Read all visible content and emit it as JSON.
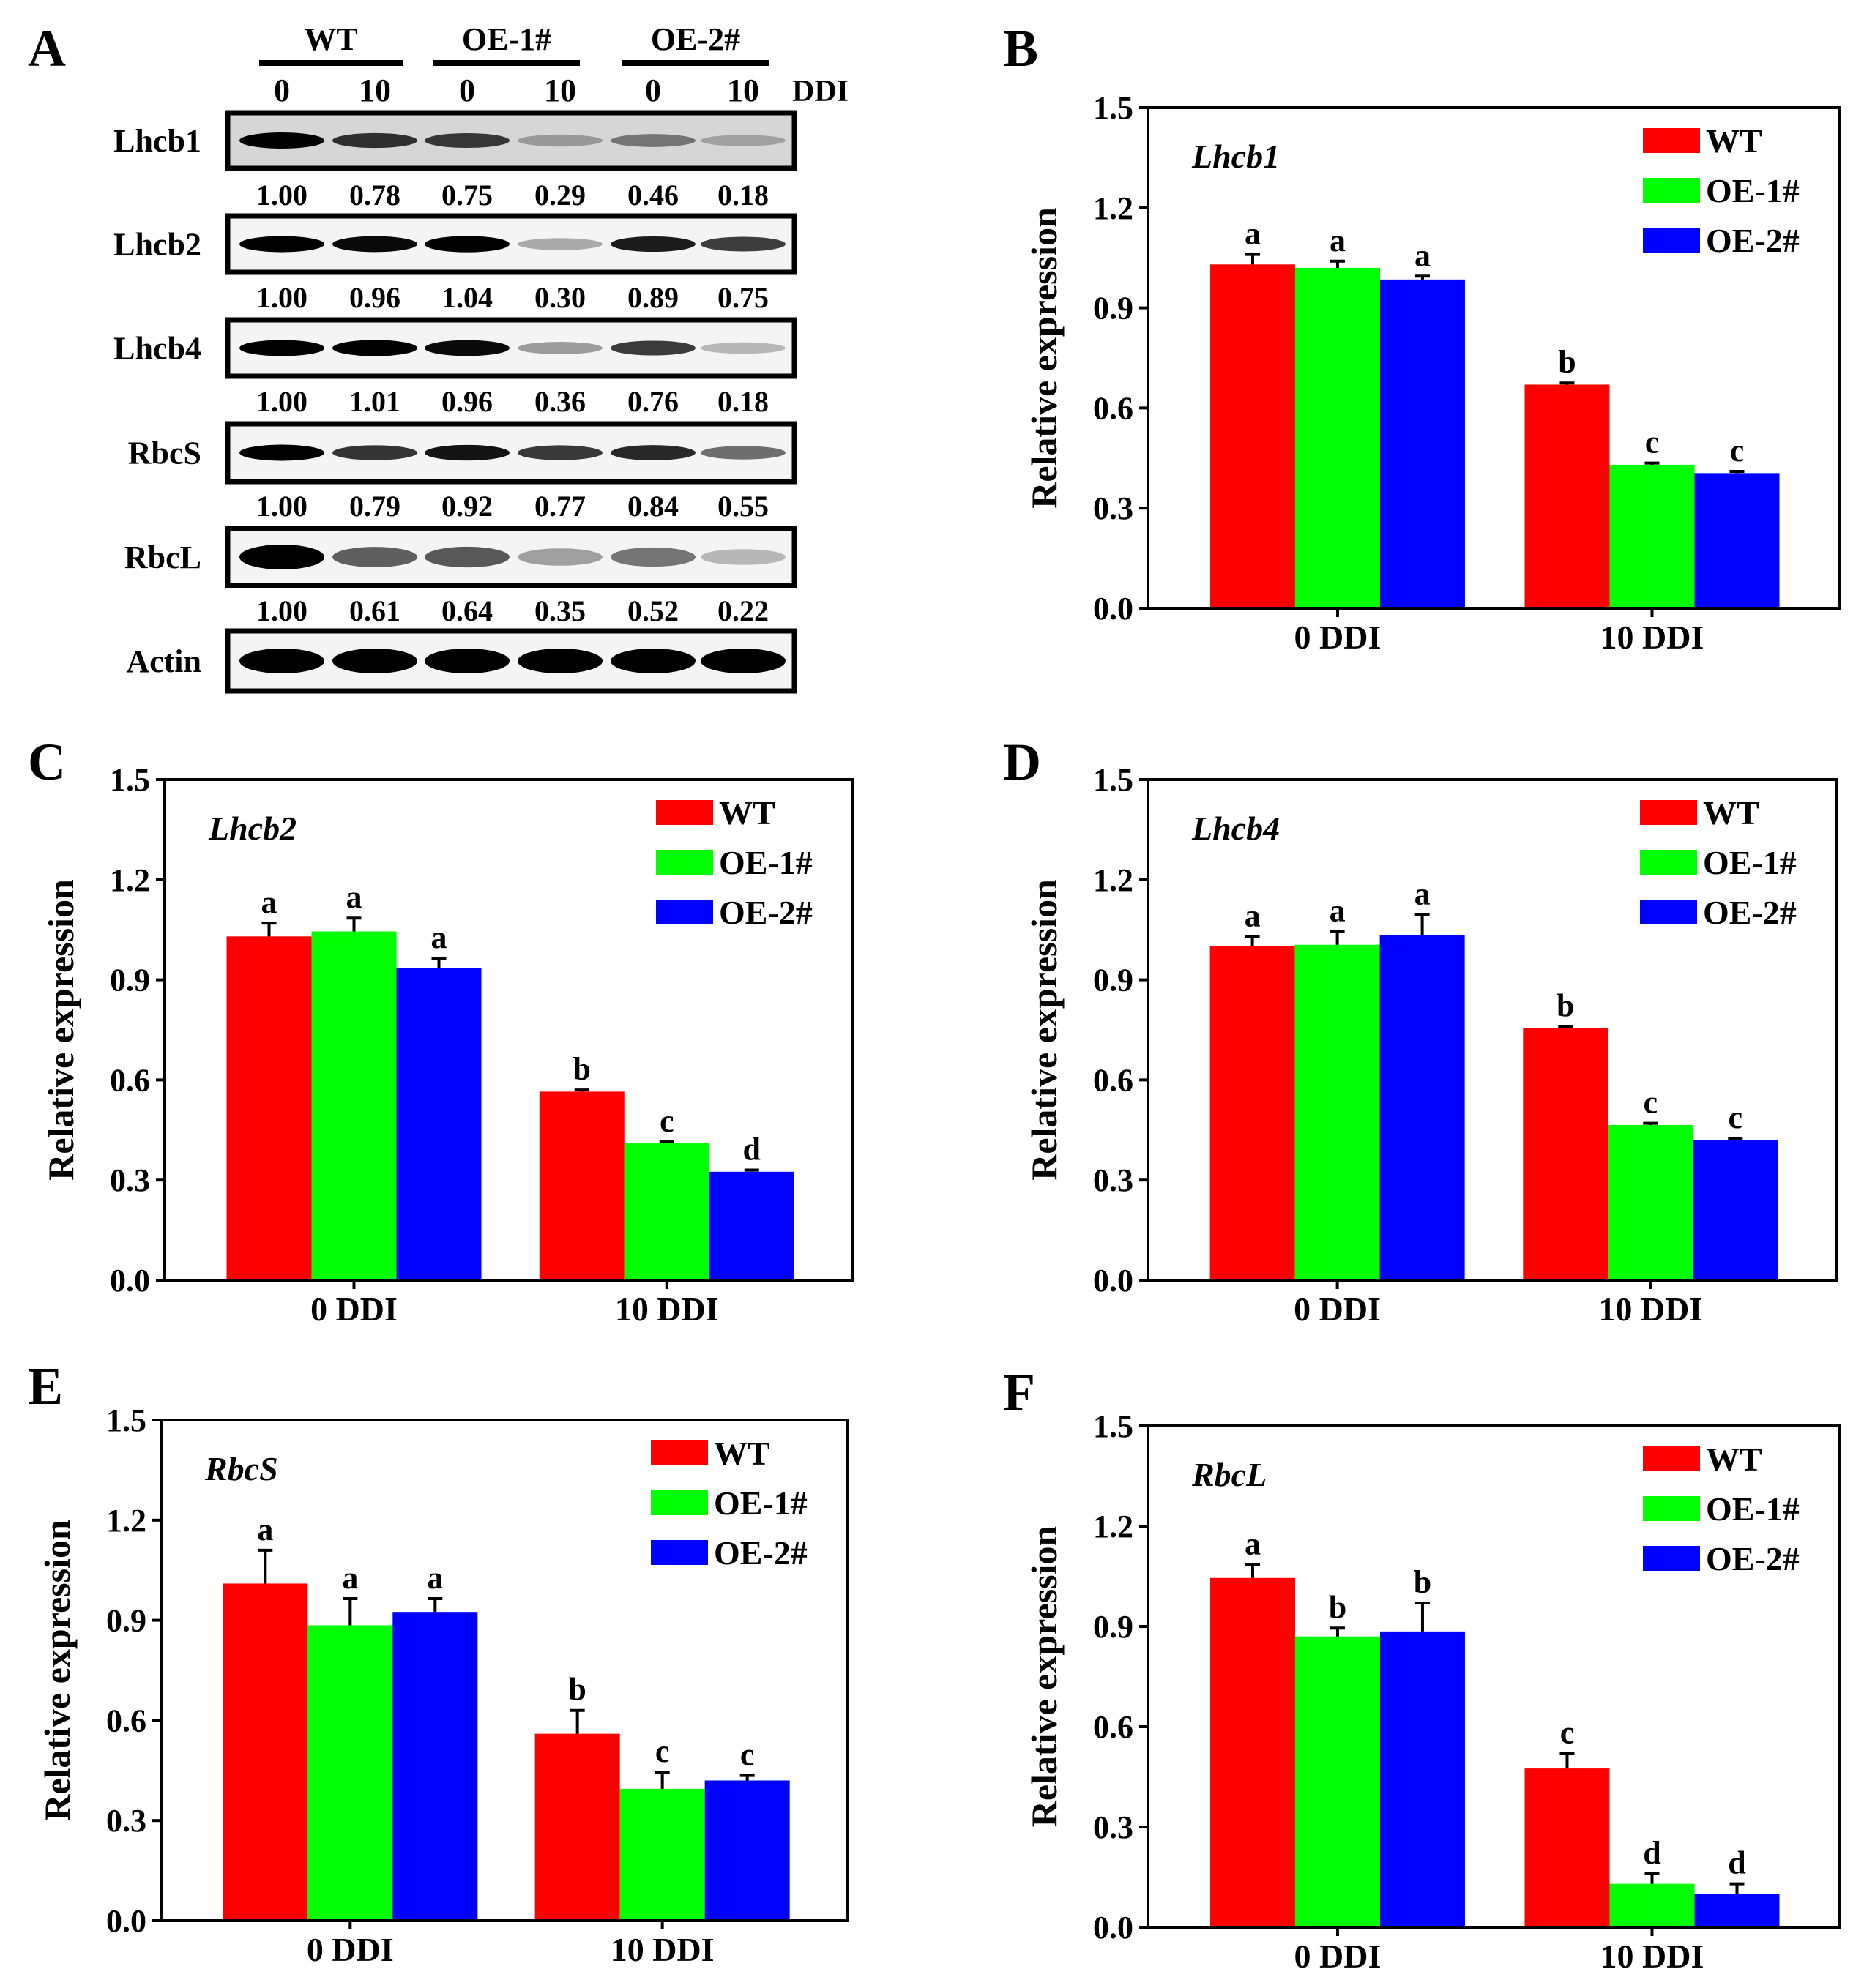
{
  "panel_a": {
    "letter": "A",
    "groups": [
      "WT",
      "OE-1#",
      "OE-2#"
    ],
    "lanes": [
      "0",
      "10",
      "0",
      "10",
      "0",
      "10"
    ],
    "lane_unit": "DDI",
    "rows": [
      {
        "label": "Lhcb1",
        "values": [
          "1.00",
          "0.78",
          "0.75",
          "0.29",
          "0.46",
          "0.18"
        ]
      },
      {
        "label": "Lhcb2",
        "values": [
          "1.00",
          "0.96",
          "1.04",
          "0.30",
          "0.89",
          "0.75"
        ]
      },
      {
        "label": "Lhcb4",
        "values": [
          "1.00",
          "1.01",
          "0.96",
          "0.36",
          "0.76",
          "0.18"
        ]
      },
      {
        "label": "RbcS",
        "values": [
          "1.00",
          "0.79",
          "0.92",
          "0.77",
          "0.84",
          "0.55"
        ]
      },
      {
        "label": "RbcL",
        "values": [
          "1.00",
          "0.61",
          "0.64",
          "0.35",
          "0.52",
          "0.22"
        ]
      },
      {
        "label": "Actin",
        "values": []
      }
    ]
  },
  "colors": {
    "WT": "#ff0000",
    "OE-1#": "#00ff00",
    "OE-2#": "#0000ff"
  },
  "chart_data": [
    {
      "letter": "B",
      "type": "bar",
      "title": "Lhcb1",
      "ylabel": "Relative expression",
      "ylim": [
        0,
        1.5
      ],
      "yticks": [
        "0.0",
        "0.3",
        "0.6",
        "0.9",
        "1.2",
        "1.5"
      ],
      "categories": [
        "0 DDI",
        "10 DDI"
      ],
      "legend": "top-right",
      "series": [
        {
          "name": "WT",
          "values": [
            1.03,
            0.67
          ],
          "errors": [
            0.03,
            0.005
          ],
          "letters": [
            "a",
            "b"
          ]
        },
        {
          "name": "OE-1#",
          "values": [
            1.02,
            0.43
          ],
          "errors": [
            0.02,
            0.005
          ],
          "letters": [
            "a",
            "c"
          ]
        },
        {
          "name": "OE-2#",
          "values": [
            0.985,
            0.405
          ],
          "errors": [
            0.01,
            0.005
          ],
          "letters": [
            "a",
            "c"
          ]
        }
      ]
    },
    {
      "letter": "C",
      "type": "bar",
      "title": "Lhcb2",
      "ylabel": "Relative expression",
      "ylim": [
        0,
        1.5
      ],
      "yticks": [
        "0.0",
        "0.3",
        "0.6",
        "0.9",
        "1.2",
        "1.5"
      ],
      "categories": [
        "0 DDI",
        "10 DDI"
      ],
      "legend": "top-right",
      "series": [
        {
          "name": "WT",
          "values": [
            1.03,
            0.565
          ],
          "errors": [
            0.04,
            0.005
          ],
          "letters": [
            "a",
            "b"
          ]
        },
        {
          "name": "OE-1#",
          "values": [
            1.045,
            0.41
          ],
          "errors": [
            0.04,
            0.005
          ],
          "letters": [
            "a",
            "c"
          ]
        },
        {
          "name": "OE-2#",
          "values": [
            0.935,
            0.325
          ],
          "errors": [
            0.03,
            0.005
          ],
          "letters": [
            "a",
            "d"
          ]
        }
      ]
    },
    {
      "letter": "D",
      "type": "bar",
      "title": "Lhcb4",
      "ylabel": "Relative expression",
      "ylim": [
        0,
        1.5
      ],
      "yticks": [
        "0.0",
        "0.3",
        "0.6",
        "0.9",
        "1.2",
        "1.5"
      ],
      "categories": [
        "0 DDI",
        "10 DDI"
      ],
      "legend": "top-right",
      "series": [
        {
          "name": "WT",
          "values": [
            1.0,
            0.755
          ],
          "errors": [
            0.03,
            0.005
          ],
          "letters": [
            "a",
            "b"
          ]
        },
        {
          "name": "OE-1#",
          "values": [
            1.005,
            0.465
          ],
          "errors": [
            0.04,
            0.005
          ],
          "letters": [
            "a",
            "c"
          ]
        },
        {
          "name": "OE-2#",
          "values": [
            1.035,
            0.42
          ],
          "errors": [
            0.06,
            0.005
          ],
          "letters": [
            "a",
            "c"
          ]
        }
      ]
    },
    {
      "letter": "E",
      "type": "bar",
      "title": "RbcS",
      "ylabel": "Relative expression",
      "ylim": [
        0,
        1.5
      ],
      "yticks": [
        "0.0",
        "0.3",
        "0.6",
        "0.9",
        "1.2",
        "1.5"
      ],
      "categories": [
        "0 DDI",
        "10 DDI"
      ],
      "legend": "top-right",
      "series": [
        {
          "name": "WT",
          "values": [
            1.01,
            0.56
          ],
          "errors": [
            0.1,
            0.07
          ],
          "letters": [
            "a",
            "b"
          ]
        },
        {
          "name": "OE-1#",
          "values": [
            0.885,
            0.395
          ],
          "errors": [
            0.08,
            0.05
          ],
          "letters": [
            "a",
            "c"
          ]
        },
        {
          "name": "OE-2#",
          "values": [
            0.925,
            0.42
          ],
          "errors": [
            0.04,
            0.015
          ],
          "letters": [
            "a",
            "c"
          ]
        }
      ]
    },
    {
      "letter": "F",
      "type": "bar",
      "title": "RbcL",
      "ylabel": "Relative expression",
      "ylim": [
        0,
        1.5
      ],
      "yticks": [
        "0.0",
        "0.3",
        "0.6",
        "0.9",
        "1.2",
        "1.5"
      ],
      "categories": [
        "0 DDI",
        "10 DDI"
      ],
      "legend": "top-right",
      "series": [
        {
          "name": "WT",
          "values": [
            1.045,
            0.475
          ],
          "errors": [
            0.04,
            0.045
          ],
          "letters": [
            "a",
            "c"
          ]
        },
        {
          "name": "OE-1#",
          "values": [
            0.87,
            0.13
          ],
          "errors": [
            0.025,
            0.03
          ],
          "letters": [
            "b",
            "d"
          ]
        },
        {
          "name": "OE-2#",
          "values": [
            0.885,
            0.1
          ],
          "errors": [
            0.085,
            0.03
          ],
          "letters": [
            "b",
            "d"
          ]
        }
      ]
    }
  ]
}
